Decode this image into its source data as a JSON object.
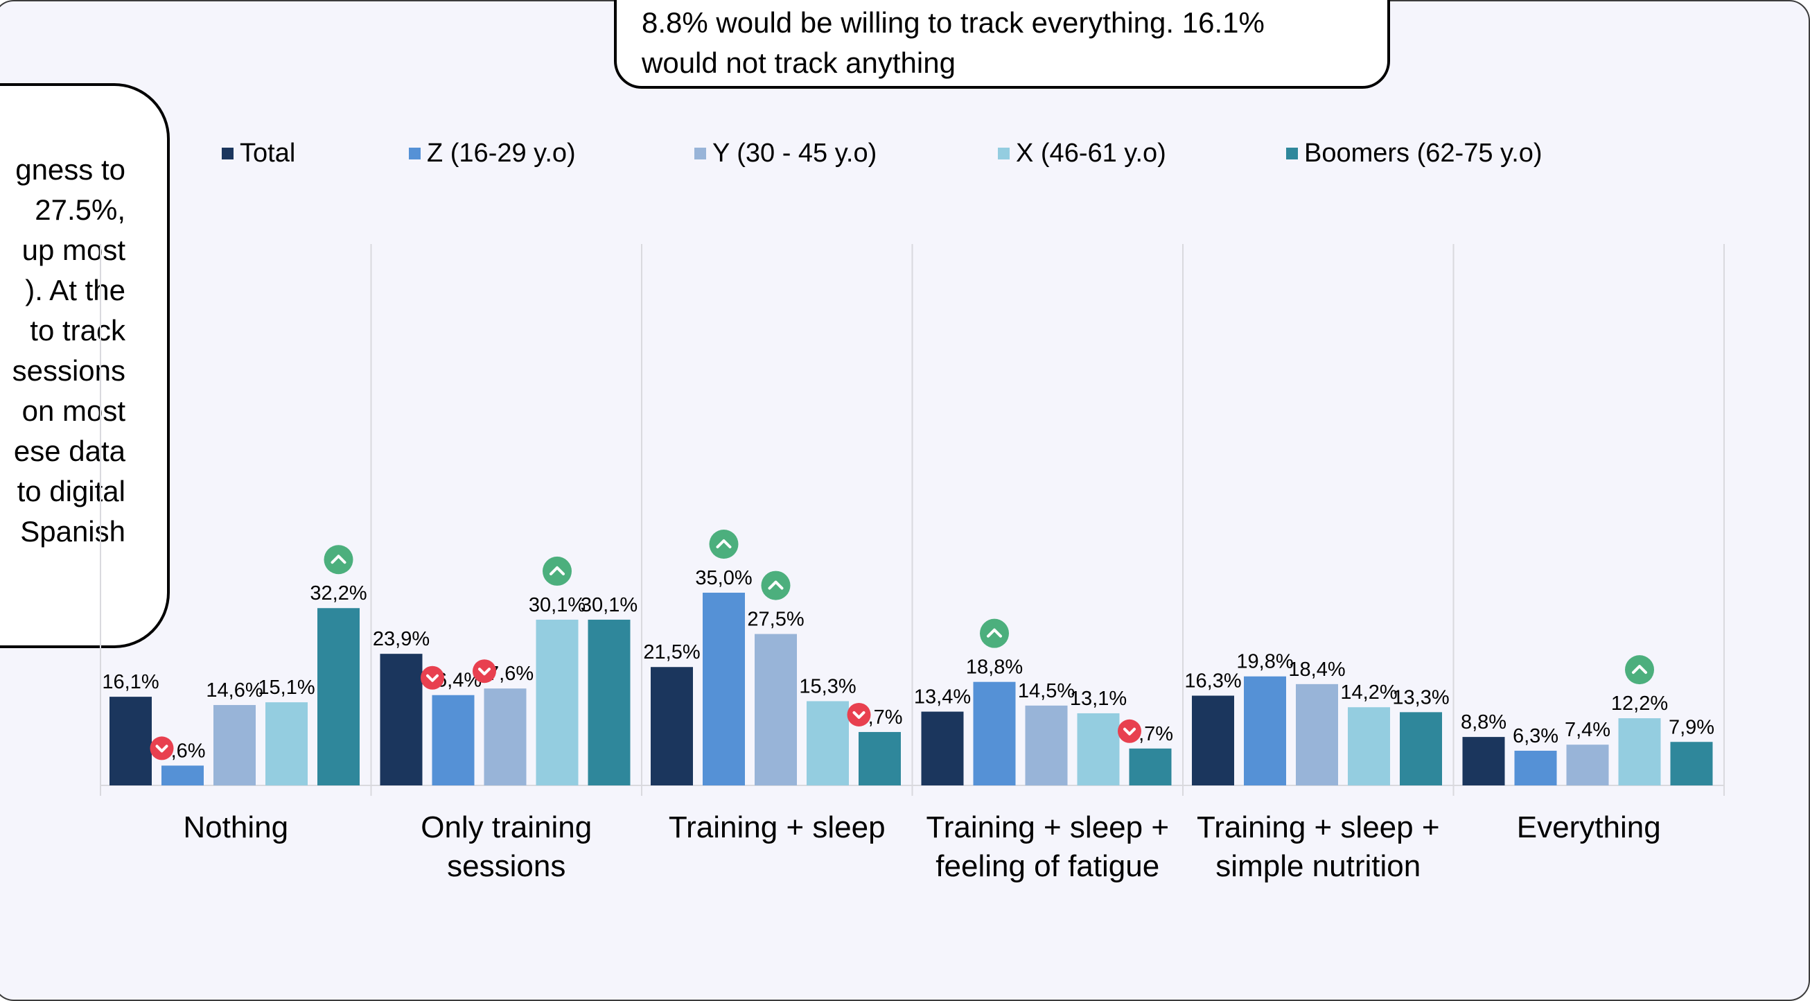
{
  "callouts": {
    "top": [
      "8.8% would be willing to track everything. 16.1%",
      "would not track anything"
    ],
    "left": [
      "gness to",
      "27.5%,",
      "up most",
      "). At the",
      "to track",
      "sessions",
      "on most",
      "ese data",
      "to digital",
      "Spanish"
    ]
  },
  "colors": {
    "Total": "#1b365d",
    "Z": "#5591d6",
    "Y": "#98b4d8",
    "X": "#94cde0",
    "Boomers": "#2f879b",
    "up": "#4caf7d",
    "down": "#e8404f"
  },
  "chart_data": {
    "type": "bar",
    "categories": [
      "Nothing",
      "Only training sessions",
      "Training + sleep",
      "Training + sleep + feeling of fatigue",
      "Training + sleep + simple nutrition",
      "Everything"
    ],
    "category_lines": [
      [
        "Nothing"
      ],
      [
        "Only training",
        "sessions"
      ],
      [
        "Training + sleep"
      ],
      [
        "Training + sleep +",
        "feeling of fatigue"
      ],
      [
        "Training + sleep +",
        "simple nutrition"
      ],
      [
        "Everything"
      ]
    ],
    "series": [
      {
        "name": "Total",
        "values": [
          16.1,
          23.9,
          21.5,
          13.4,
          16.3,
          8.8
        ],
        "labels": [
          "16,1%",
          "23,9%",
          "21,5%",
          "13,4%",
          "16,3%",
          "8,8%"
        ]
      },
      {
        "name": "Z (16-29 y.o)",
        "values": [
          3.6,
          16.4,
          35.0,
          18.8,
          19.8,
          6.3
        ],
        "labels": [
          "3,6%",
          "16,4%",
          "35,0%",
          "18,8%",
          "19,8%",
          "6,3%"
        ]
      },
      {
        "name": "Y (30 - 45 y.o)",
        "values": [
          14.6,
          17.6,
          27.5,
          14.5,
          18.4,
          7.4
        ],
        "labels": [
          "14,6%",
          "17,6%",
          "27,5%",
          "14,5%",
          "18,4%",
          "7,4%"
        ]
      },
      {
        "name": "X (46-61 y.o)",
        "values": [
          15.1,
          30.1,
          15.3,
          13.1,
          14.2,
          12.2
        ],
        "labels": [
          "15,1%",
          "30,1%",
          "15,3%",
          "13,1%",
          "14,2%",
          "12,2%"
        ]
      },
      {
        "name": "Boomers (62-75 y.o)",
        "values": [
          32.2,
          30.1,
          9.7,
          6.7,
          13.3,
          7.9
        ],
        "labels": [
          "32,2%",
          "30,1%",
          "9,7%",
          "6,7%",
          "13,3%",
          "7,9%"
        ]
      }
    ],
    "markers": [
      {
        "category": 0,
        "series": 1,
        "dir": "down"
      },
      {
        "category": 0,
        "series": 4,
        "dir": "up"
      },
      {
        "category": 1,
        "series": 1,
        "dir": "down"
      },
      {
        "category": 1,
        "series": 2,
        "dir": "down"
      },
      {
        "category": 1,
        "series": 3,
        "dir": "up"
      },
      {
        "category": 2,
        "series": 1,
        "dir": "up"
      },
      {
        "category": 2,
        "series": 2,
        "dir": "up"
      },
      {
        "category": 2,
        "series": 4,
        "dir": "down"
      },
      {
        "category": 3,
        "series": 1,
        "dir": "up"
      },
      {
        "category": 3,
        "series": 4,
        "dir": "down"
      },
      {
        "category": 5,
        "series": 3,
        "dir": "up"
      }
    ],
    "ylim": [
      0,
      36
    ],
    "grid": "vertical separators",
    "legend": "top"
  }
}
